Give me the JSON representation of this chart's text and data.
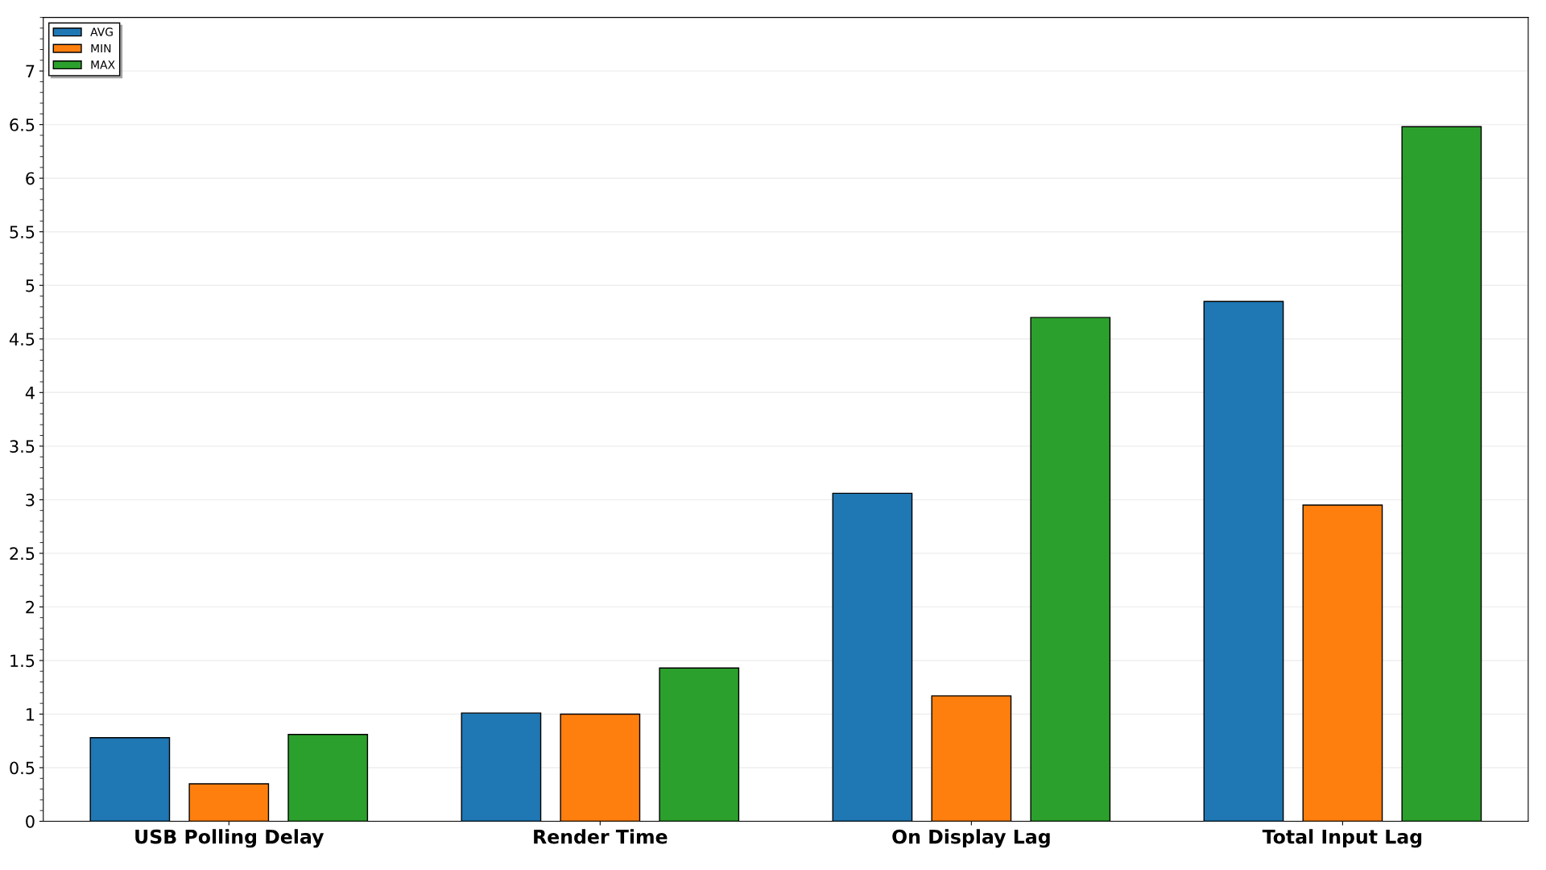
{
  "chart_data": {
    "type": "bar",
    "categories": [
      "USB Polling Delay",
      "Render Time",
      "On Display Lag",
      "Total Input Lag"
    ],
    "series": [
      {
        "name": "AVG",
        "color": "#1f77b4",
        "values": [
          0.78,
          1.01,
          3.06,
          4.85
        ]
      },
      {
        "name": "MIN",
        "color": "#ff7f0e",
        "values": [
          0.35,
          1.0,
          1.17,
          2.95
        ]
      },
      {
        "name": "MAX",
        "color": "#2ca02c",
        "values": [
          0.81,
          1.43,
          4.7,
          6.48
        ]
      }
    ],
    "ylim": [
      0,
      7.5
    ],
    "yticks": [
      0,
      0.5,
      1,
      1.5,
      2,
      2.5,
      3,
      3.5,
      4,
      4.5,
      5,
      5.5,
      6,
      6.5,
      7
    ],
    "grid": "y",
    "legend": "top left"
  }
}
